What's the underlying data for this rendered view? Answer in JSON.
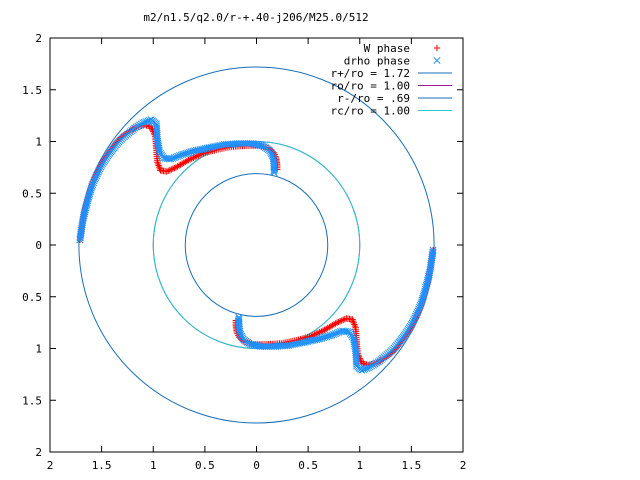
{
  "chart_data": {
    "type": "scatter",
    "title": "m2/n1.5/q2.0/r-+.40-j206/M25.0/512",
    "xlabel": "",
    "ylabel": "",
    "xlim": [
      -2,
      2
    ],
    "ylim": [
      -2,
      2
    ],
    "x_ticks": [
      -2,
      -1.5,
      -1,
      -0.5,
      0,
      0.5,
      1,
      1.5,
      2
    ],
    "y_ticks": [
      -2,
      -1.5,
      -1,
      -0.5,
      0,
      0.5,
      1,
      1.5,
      2
    ],
    "x_tick_labels": [
      "2",
      "1.5",
      "1",
      "0.5",
      "0",
      "0.5",
      "1",
      "1.5",
      "2"
    ],
    "y_tick_labels": [
      "2",
      "1.5",
      "1",
      "0.5",
      "0",
      "0.5",
      "1",
      "1.5",
      "2"
    ],
    "grid": false,
    "legend_position": "top-right",
    "series": [
      {
        "name": "W phase",
        "kind": "points",
        "marker": "plus",
        "color": "#ff0000",
        "x": [
          -1.71,
          -1.69,
          -1.66,
          -1.62,
          -1.58,
          -1.53,
          -1.48,
          -1.42,
          -1.36,
          -1.3,
          -1.23,
          -1.16,
          -1.08,
          -1.02,
          -0.98,
          -0.97,
          -0.96,
          -0.93,
          -0.87,
          -0.78,
          -0.66,
          -0.53,
          -0.39,
          -0.24,
          -0.1,
          0.03,
          0.12,
          0.17,
          0.19,
          0.2,
          0.2,
          1.71,
          1.69,
          1.66,
          1.62,
          1.58,
          1.53,
          1.48,
          1.42,
          1.36,
          1.3,
          1.23,
          1.16,
          1.08,
          1.02,
          0.98,
          0.97,
          0.96,
          0.93,
          0.87,
          0.78,
          0.66,
          0.53,
          0.39,
          0.24,
          0.1,
          -0.03,
          -0.12,
          -0.17,
          -0.19,
          -0.2,
          -0.2
        ],
        "y": [
          0.05,
          0.2,
          0.36,
          0.5,
          0.62,
          0.73,
          0.83,
          0.91,
          0.99,
          1.05,
          1.1,
          1.14,
          1.16,
          1.14,
          1.05,
          0.93,
          0.8,
          0.72,
          0.71,
          0.75,
          0.82,
          0.88,
          0.92,
          0.95,
          0.96,
          0.96,
          0.93,
          0.89,
          0.84,
          0.78,
          0.73,
          -0.05,
          -0.2,
          -0.36,
          -0.5,
          -0.62,
          -0.73,
          -0.83,
          -0.91,
          -0.99,
          -1.05,
          -1.1,
          -1.14,
          -1.16,
          -1.14,
          -1.05,
          -0.93,
          -0.8,
          -0.72,
          -0.71,
          -0.75,
          -0.82,
          -0.88,
          -0.92,
          -0.95,
          -0.96,
          -0.96,
          -0.93,
          -0.89,
          -0.84,
          -0.78,
          -0.73
        ]
      },
      {
        "name": "drho phase",
        "kind": "points",
        "marker": "cross",
        "color": "#1e90ff",
        "x": [
          -1.71,
          -1.68,
          -1.64,
          -1.6,
          -1.55,
          -1.5,
          -1.44,
          -1.38,
          -1.32,
          -1.25,
          -1.18,
          -1.1,
          -1.02,
          -0.97,
          -0.96,
          -0.94,
          -0.9,
          -0.83,
          -0.73,
          -0.6,
          -0.46,
          -0.31,
          -0.17,
          -0.04,
          0.06,
          0.13,
          0.16,
          0.17,
          0.17,
          1.71,
          1.68,
          1.64,
          1.6,
          1.55,
          1.5,
          1.44,
          1.38,
          1.32,
          1.25,
          1.18,
          1.1,
          1.02,
          0.97,
          0.96,
          0.94,
          0.9,
          0.83,
          0.73,
          0.6,
          0.46,
          0.31,
          0.17,
          0.04,
          -0.06,
          -0.13,
          -0.16,
          -0.17,
          -0.17
        ],
        "y": [
          0.05,
          0.25,
          0.41,
          0.55,
          0.67,
          0.77,
          0.86,
          0.94,
          1.01,
          1.07,
          1.13,
          1.18,
          1.21,
          1.17,
          1.02,
          0.9,
          0.84,
          0.83,
          0.87,
          0.91,
          0.94,
          0.97,
          0.98,
          0.98,
          0.96,
          0.91,
          0.85,
          0.78,
          0.7,
          -0.05,
          -0.25,
          -0.41,
          -0.55,
          -0.67,
          -0.77,
          -0.86,
          -0.94,
          -1.01,
          -1.07,
          -1.13,
          -1.18,
          -1.21,
          -1.17,
          -1.02,
          -0.9,
          -0.84,
          -0.83,
          -0.87,
          -0.91,
          -0.94,
          -0.97,
          -0.98,
          -0.98,
          -0.96,
          -0.91,
          -0.85,
          -0.78,
          -0.7
        ]
      },
      {
        "name": "r+/ro = 1.72",
        "kind": "circle",
        "radius": 1.72,
        "color": "#1a6fb8"
      },
      {
        "name": "ro/ro = 1.00",
        "kind": "circle",
        "radius": 1.0,
        "color": "#9b1b8b"
      },
      {
        "name": "r-/ro = .69",
        "kind": "circle",
        "radius": 0.69,
        "color": "#1a6fb8"
      },
      {
        "name": "rc/ro = 1.00",
        "kind": "circle",
        "radius": 1.0,
        "color": "#22cccc"
      }
    ]
  }
}
